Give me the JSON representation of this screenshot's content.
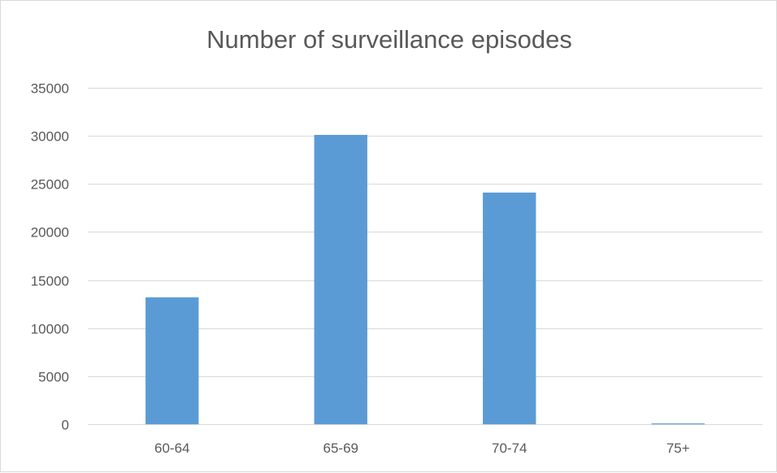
{
  "chart_data": {
    "type": "bar",
    "title": "Number of surveillance episodes",
    "xlabel": "",
    "ylabel": "",
    "categories": [
      "60-64",
      "65-69",
      "70-74",
      "75+"
    ],
    "values": [
      13200,
      30100,
      24100,
      30
    ],
    "ylim": [
      0,
      35000
    ],
    "yticks": [
      0,
      5000,
      10000,
      15000,
      20000,
      25000,
      30000,
      35000
    ],
    "ytick_labels": [
      "0",
      "5000",
      "10000",
      "15000",
      "20000",
      "25000",
      "30000",
      "35000"
    ],
    "grid": true,
    "legend": "none",
    "bar_color": "#5b9bd5",
    "grid_color": "#d9d9d9",
    "text_color": "#595959"
  }
}
